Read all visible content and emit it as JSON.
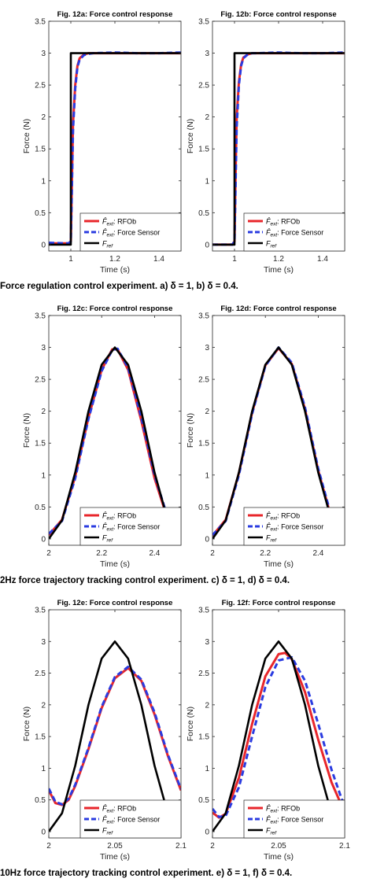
{
  "captions": [
    "Force regulation control experiment. a) δ = 1, b) δ = 0.4.",
    "2Hz force trajectory tracking control experiment. c) δ = 1, d) δ = 0.4.",
    "10Hz force trajectory tracking control experiment. e) δ = 1, f) δ = 0.4."
  ],
  "colors": {
    "rfob": "#e8262b",
    "sensor": "#2a3be0",
    "ref": "#000000"
  },
  "chart_data": [
    {
      "type": "line",
      "title": "Fig. 12a: Force control response",
      "xlabel": "Time (s)",
      "ylabel": "Force (N)",
      "xlim": [
        0.9,
        1.5
      ],
      "ylim": [
        -0.1,
        3.5
      ],
      "xticks": [
        1,
        1.2,
        1.4
      ],
      "xticklabels": [
        "1",
        "1.2",
        "1.4"
      ],
      "yticks": [
        0,
        0.5,
        1,
        1.5,
        2,
        2.5,
        3,
        3.5
      ],
      "yticklabels": [
        "0",
        "0.5",
        "1",
        "1.5",
        "2",
        "2.5",
        "3",
        "3.5"
      ],
      "legend": [
        "F̂ext: RFOb",
        "F̂ext: Force Sensor",
        "Fref"
      ],
      "series": [
        {
          "name": "F̂ext: RFOb",
          "x": [
            0.9,
            0.99,
            1.0,
            1.005,
            1.01,
            1.02,
            1.03,
            1.04,
            1.06,
            1.08,
            1.1,
            1.2,
            1.3,
            1.4,
            1.5
          ],
          "y": [
            0.02,
            0.02,
            0.05,
            1.0,
            1.9,
            2.5,
            2.8,
            2.92,
            2.98,
            3.0,
            3.0,
            3.0,
            3.0,
            3.0,
            3.0
          ]
        },
        {
          "name": "F̂ext: Force Sensor",
          "x": [
            0.9,
            0.99,
            1.0,
            1.005,
            1.01,
            1.02,
            1.03,
            1.04,
            1.06,
            1.08,
            1.1,
            1.2,
            1.3,
            1.4,
            1.5
          ],
          "y": [
            0.03,
            0.02,
            0.05,
            0.9,
            1.8,
            2.45,
            2.78,
            2.9,
            2.97,
            2.99,
            3.0,
            3.01,
            3.0,
            3.0,
            3.01
          ]
        },
        {
          "name": "Fref",
          "x": [
            0.9,
            1.0,
            1.0,
            1.5
          ],
          "y": [
            0,
            0,
            3,
            3
          ]
        }
      ]
    },
    {
      "type": "line",
      "title": "Fig. 12b: Force control response",
      "xlabel": "Time (s)",
      "ylabel": "Force (N)",
      "xlim": [
        0.9,
        1.5
      ],
      "ylim": [
        -0.1,
        3.5
      ],
      "xticks": [
        1,
        1.2,
        1.4
      ],
      "xticklabels": [
        "1",
        "1.2",
        "1.4"
      ],
      "yticks": [
        0,
        0.5,
        1,
        1.5,
        2,
        2.5,
        3,
        3.5
      ],
      "yticklabels": [
        "0",
        "0.5",
        "1",
        "1.5",
        "2",
        "2.5",
        "3",
        "3.5"
      ],
      "legend": [
        "F̂ext: RFOb",
        "F̂ext: Force Sensor",
        "Fref"
      ],
      "series": [
        {
          "name": "F̂ext: RFOb",
          "x": [
            0.9,
            0.99,
            1.0,
            1.005,
            1.01,
            1.02,
            1.03,
            1.04,
            1.06,
            1.08,
            1.1,
            1.2,
            1.3,
            1.4,
            1.5
          ],
          "y": [
            0.0,
            0.0,
            0.05,
            1.1,
            2.0,
            2.55,
            2.82,
            2.93,
            2.98,
            3.0,
            3.0,
            3.0,
            3.0,
            3.0,
            3.0
          ]
        },
        {
          "name": "F̂ext: Force Sensor",
          "x": [
            0.9,
            0.99,
            1.0,
            1.005,
            1.01,
            1.02,
            1.03,
            1.04,
            1.06,
            1.08,
            1.1,
            1.2,
            1.3,
            1.4,
            1.5
          ],
          "y": [
            0.0,
            0.0,
            0.05,
            0.95,
            1.85,
            2.5,
            2.8,
            2.92,
            2.98,
            3.0,
            3.0,
            3.01,
            3.0,
            3.0,
            3.01
          ]
        },
        {
          "name": "Fref",
          "x": [
            0.9,
            1.0,
            1.0,
            1.5
          ],
          "y": [
            0,
            0,
            3,
            3
          ]
        }
      ]
    },
    {
      "type": "line",
      "title": "Fig. 12c: Force control response",
      "xlabel": "Time (s)",
      "ylabel": "Force (N)",
      "xlim": [
        2.0,
        2.5
      ],
      "ylim": [
        -0.1,
        3.5
      ],
      "xticks": [
        2,
        2.2,
        2.4
      ],
      "xticklabels": [
        "2",
        "2.2",
        "2.4"
      ],
      "yticks": [
        0,
        0.5,
        1,
        1.5,
        2,
        2.5,
        3,
        3.5
      ],
      "yticklabels": [
        "0",
        "0.5",
        "1",
        "1.5",
        "2",
        "2.5",
        "3",
        "3.5"
      ],
      "legend": [
        "F̂ext: RFOb",
        "F̂ext: Force Sensor",
        "Fref"
      ],
      "series": [
        {
          "name": "F̂ext: RFOb",
          "x": [
            2.0,
            2.05,
            2.1,
            2.15,
            2.2,
            2.24,
            2.26,
            2.3,
            2.35,
            2.4,
            2.45,
            2.5
          ],
          "y": [
            0.06,
            0.3,
            0.98,
            1.9,
            2.65,
            2.97,
            2.97,
            2.65,
            1.85,
            0.95,
            0.3,
            0.06
          ]
        },
        {
          "name": "F̂ext: Force Sensor",
          "x": [
            2.0,
            2.05,
            2.1,
            2.15,
            2.2,
            2.24,
            2.26,
            2.3,
            2.35,
            2.4,
            2.45,
            2.5
          ],
          "y": [
            0.08,
            0.28,
            0.95,
            1.88,
            2.63,
            2.96,
            2.98,
            2.68,
            1.9,
            1.0,
            0.33,
            0.08
          ]
        },
        {
          "name": "Fref",
          "x": [
            2.0,
            2.05,
            2.1,
            2.15,
            2.2,
            2.25,
            2.3,
            2.35,
            2.4,
            2.45,
            2.5
          ],
          "y": [
            0.0,
            0.29,
            1.04,
            2.0,
            2.73,
            3.0,
            2.73,
            2.0,
            1.04,
            0.29,
            0.0
          ]
        }
      ]
    },
    {
      "type": "line",
      "title": "Fig. 12d: Force control response",
      "xlabel": "Time (s)",
      "ylabel": "Force (N)",
      "xlim": [
        2.0,
        2.5
      ],
      "ylim": [
        -0.1,
        3.5
      ],
      "xticks": [
        2,
        2.2,
        2.4
      ],
      "xticklabels": [
        "2",
        "2.2",
        "2.4"
      ],
      "yticks": [
        0,
        0.5,
        1,
        1.5,
        2,
        2.5,
        3,
        3.5
      ],
      "yticklabels": [
        "0",
        "0.5",
        "1",
        "1.5",
        "2",
        "2.5",
        "3",
        "3.5"
      ],
      "legend": [
        "F̂ext: RFOb",
        "F̂ext: Force Sensor",
        "Fref"
      ],
      "series": [
        {
          "name": "F̂ext: RFOb",
          "x": [
            2.0,
            2.05,
            2.1,
            2.15,
            2.2,
            2.25,
            2.3,
            2.35,
            2.4,
            2.45,
            2.5
          ],
          "y": [
            0.05,
            0.3,
            1.03,
            1.98,
            2.72,
            2.99,
            2.74,
            2.03,
            1.07,
            0.32,
            0.05
          ]
        },
        {
          "name": "F̂ext: Force Sensor",
          "x": [
            2.0,
            2.05,
            2.1,
            2.15,
            2.2,
            2.25,
            2.3,
            2.35,
            2.4,
            2.45,
            2.5
          ],
          "y": [
            0.06,
            0.28,
            1.0,
            1.96,
            2.71,
            3.0,
            2.76,
            2.06,
            1.1,
            0.35,
            0.06
          ]
        },
        {
          "name": "Fref",
          "x": [
            2.0,
            2.05,
            2.1,
            2.15,
            2.2,
            2.25,
            2.3,
            2.35,
            2.4,
            2.45,
            2.5
          ],
          "y": [
            0.0,
            0.29,
            1.04,
            2.0,
            2.73,
            3.0,
            2.73,
            2.0,
            1.04,
            0.29,
            0.0
          ]
        }
      ]
    },
    {
      "type": "line",
      "title": "Fig. 12e: Force control response",
      "xlabel": "Time (s)",
      "ylabel": "Force (N)",
      "xlim": [
        2.0,
        2.1
      ],
      "ylim": [
        -0.1,
        3.5
      ],
      "xticks": [
        2,
        2.05,
        2.1
      ],
      "xticklabels": [
        "2",
        "2.05",
        "2.1"
      ],
      "yticks": [
        0,
        0.5,
        1,
        1.5,
        2,
        2.5,
        3,
        3.5
      ],
      "yticklabels": [
        "0",
        "0.5",
        "1",
        "1.5",
        "2",
        "2.5",
        "3",
        "3.5"
      ],
      "legend": [
        "F̂ext: RFOb",
        "F̂ext: Force Sensor",
        "Fref"
      ],
      "series": [
        {
          "name": "F̂ext: RFOb",
          "x": [
            2.0,
            2.005,
            2.01,
            2.015,
            2.02,
            2.03,
            2.04,
            2.05,
            2.06,
            2.07,
            2.08,
            2.09,
            2.1
          ],
          "y": [
            0.65,
            0.45,
            0.42,
            0.5,
            0.72,
            1.3,
            1.95,
            2.42,
            2.58,
            2.38,
            1.85,
            1.2,
            0.65
          ]
        },
        {
          "name": "F̂ext: Force Sensor",
          "x": [
            2.0,
            2.005,
            2.01,
            2.015,
            2.02,
            2.03,
            2.04,
            2.05,
            2.06,
            2.07,
            2.08,
            2.09,
            2.1
          ],
          "y": [
            0.68,
            0.47,
            0.43,
            0.52,
            0.74,
            1.32,
            1.97,
            2.44,
            2.6,
            2.4,
            1.88,
            1.22,
            0.67
          ]
        },
        {
          "name": "Fref",
          "x": [
            2.0,
            2.01,
            2.02,
            2.03,
            2.04,
            2.05,
            2.06,
            2.07,
            2.08,
            2.09
          ],
          "y": [
            0.0,
            0.29,
            1.04,
            2.0,
            2.73,
            3.0,
            2.73,
            2.0,
            1.04,
            0.29
          ]
        }
      ]
    },
    {
      "type": "line",
      "title": "Fig. 12f: Force control response",
      "xlabel": "Time (s)",
      "ylabel": "Force (N)",
      "xlim": [
        2.0,
        2.1
      ],
      "ylim": [
        -0.1,
        3.5
      ],
      "xticks": [
        2,
        2.05,
        2.1
      ],
      "xticklabels": [
        "2",
        "2.05",
        "2.1"
      ],
      "yticks": [
        0,
        0.5,
        1,
        1.5,
        2,
        2.5,
        3,
        3.5
      ],
      "yticklabels": [
        "0",
        "0.5",
        "1",
        "1.5",
        "2",
        "2.5",
        "3",
        "3.5"
      ],
      "legend": [
        "F̂ext: RFOb",
        "F̂ext: Force Sensor",
        "Fref"
      ],
      "series": [
        {
          "name": "F̂ext: RFOb",
          "x": [
            2.0,
            2.005,
            2.01,
            2.02,
            2.03,
            2.04,
            2.05,
            2.055,
            2.06,
            2.07,
            2.08,
            2.09,
            2.1
          ],
          "y": [
            0.3,
            0.22,
            0.28,
            0.85,
            1.7,
            2.45,
            2.8,
            2.82,
            2.72,
            2.2,
            1.45,
            0.78,
            0.3
          ]
        },
        {
          "name": "F̂ext: Force Sensor",
          "x": [
            2.0,
            2.005,
            2.01,
            2.02,
            2.03,
            2.04,
            2.05,
            2.06,
            2.07,
            2.08,
            2.09,
            2.1
          ],
          "y": [
            0.36,
            0.23,
            0.25,
            0.7,
            1.5,
            2.28,
            2.7,
            2.75,
            2.38,
            1.7,
            0.98,
            0.38
          ]
        },
        {
          "name": "Fref",
          "x": [
            2.0,
            2.01,
            2.02,
            2.03,
            2.04,
            2.05,
            2.06,
            2.07,
            2.08,
            2.09
          ],
          "y": [
            0.0,
            0.29,
            1.04,
            2.0,
            2.73,
            3.0,
            2.73,
            2.0,
            1.04,
            0.29
          ]
        }
      ]
    }
  ]
}
